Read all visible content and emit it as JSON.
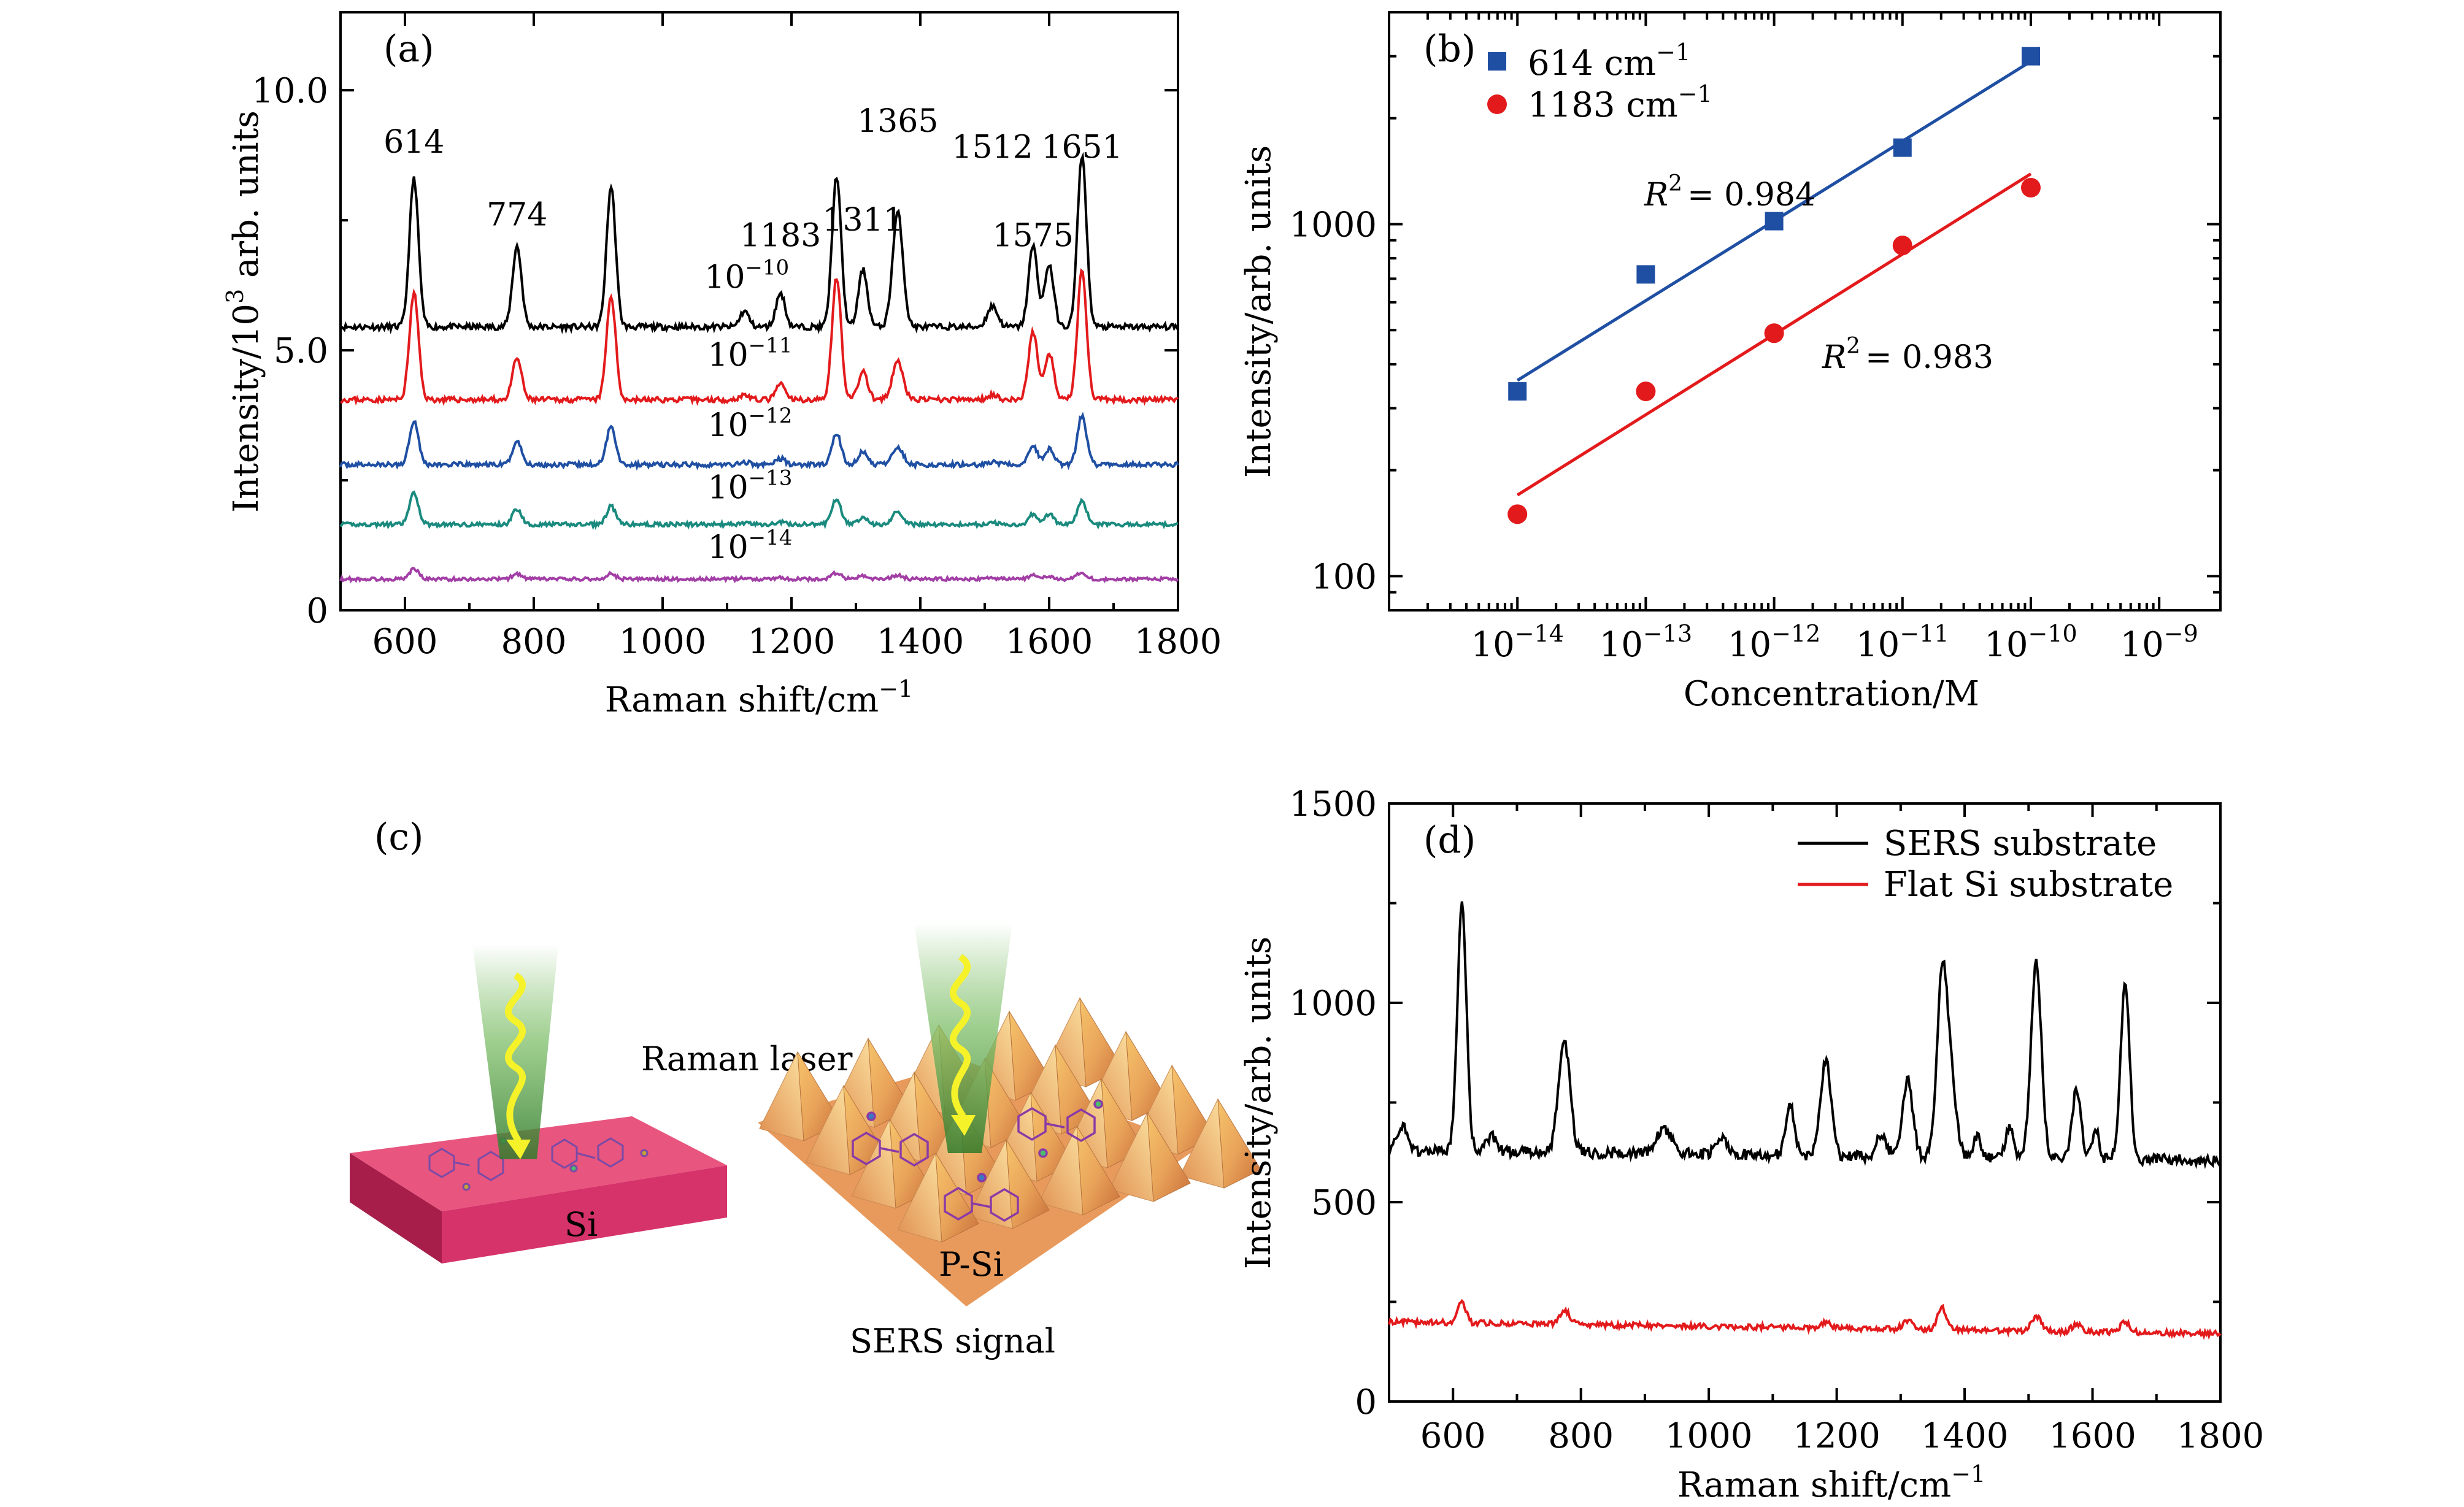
{
  "chart_data": [
    {
      "type": "line",
      "panel_label": "(a)",
      "xlabel": "Raman shift/cm",
      "xlabel_sup": "−1",
      "ylabel": "Intensity/10",
      "ylabel_sup": "3",
      "ylabel_tail": " arb. units",
      "xlim": [
        500,
        1800
      ],
      "ylim": [
        0,
        11.5
      ],
      "x_ticks": [
        600,
        800,
        1000,
        1200,
        1400,
        1600,
        1800
      ],
      "y_ticks": [
        {
          "v": 0,
          "label": "0"
        },
        {
          "v": 5,
          "label": "5.0"
        },
        {
          "v": 10,
          "label": "10.0"
        }
      ],
      "peaks": [
        614,
        774,
        1183,
        1311,
        1365,
        1512,
        1575,
        1651
      ],
      "peak_labels": [
        {
          "text": "614",
          "x": 614,
          "y": 8.8
        },
        {
          "text": "774",
          "x": 774,
          "y": 7.4
        },
        {
          "text": "1183",
          "x": 1183,
          "y": 7.0
        },
        {
          "text": "1311",
          "x": 1311,
          "y": 7.3
        },
        {
          "text": "1365",
          "x": 1365,
          "y": 9.2
        },
        {
          "text": "1512",
          "x": 1512,
          "y": 8.7
        },
        {
          "text": "1575",
          "x": 1575,
          "y": 7.0
        },
        {
          "text": "1651",
          "x": 1651,
          "y": 8.7
        }
      ],
      "series": [
        {
          "label": "10",
          "label_sup": "−10",
          "label_x": 1065,
          "label_y": 6.2,
          "color": "#000000",
          "baseline": 5.45,
          "heights": [
            2.85,
            1.55,
            0.65,
            1.1,
            2.2,
            0.4,
            1.55,
            3.3,
            0.3,
            2.9,
            1.2,
            2.7
          ],
          "seed": 11
        },
        {
          "label": "10",
          "label_sup": "−11",
          "label_x": 1070,
          "label_y": 4.7,
          "color": "#e31a1c",
          "baseline": 4.05,
          "heights": [
            2.05,
            0.8,
            0.3,
            0.55,
            0.75,
            0.1,
            1.3,
            2.5,
            0.1,
            2.35,
            0.9,
            2.0
          ],
          "seed": 23
        },
        {
          "label": "10",
          "label_sup": "−12",
          "label_x": 1070,
          "label_y": 3.35,
          "color": "#1f4fa3",
          "baseline": 2.8,
          "heights": [
            0.85,
            0.45,
            0.12,
            0.25,
            0.35,
            0.05,
            0.35,
            0.95,
            0.05,
            0.6,
            0.3,
            0.75
          ],
          "seed": 37
        },
        {
          "label": "10",
          "label_sup": "−13",
          "label_x": 1070,
          "label_y": 2.15,
          "color": "#1a8a7e",
          "baseline": 1.65,
          "heights": [
            0.6,
            0.3,
            0.05,
            0.15,
            0.25,
            0.03,
            0.2,
            0.45,
            0.03,
            0.5,
            0.2,
            0.35
          ],
          "seed": 41
        },
        {
          "label": "10",
          "label_sup": "−14",
          "label_x": 1070,
          "label_y": 1.0,
          "color": "#a23ea6",
          "baseline": 0.6,
          "heights": [
            0.2,
            0.1,
            0.03,
            0.06,
            0.08,
            0.02,
            0.07,
            0.13,
            0.02,
            0.12,
            0.06,
            0.1
          ],
          "seed": 53
        }
      ]
    },
    {
      "type": "scatter",
      "panel_label": "(b)",
      "xscale": "log",
      "yscale": "log",
      "xlabel": "Concentration/M",
      "ylabel": "Intensity/arb. units",
      "xlim": [
        1e-15,
        3e-09
      ],
      "ylim": [
        80,
        4000
      ],
      "x_ticks": [
        {
          "v": 1e-14,
          "base": "10",
          "exp": "−14"
        },
        {
          "v": 1e-13,
          "base": "10",
          "exp": "−13"
        },
        {
          "v": 1e-12,
          "base": "10",
          "exp": "−12"
        },
        {
          "v": 1e-11,
          "base": "10",
          "exp": "−11"
        },
        {
          "v": 1e-10,
          "base": "10",
          "exp": "−10"
        },
        {
          "v": 1e-09,
          "base": "10",
          "exp": "−9"
        }
      ],
      "y_ticks": [
        {
          "v": 100,
          "label": "100"
        },
        {
          "v": 1000,
          "label": "1000"
        }
      ],
      "legend_position": "top-left",
      "series": [
        {
          "name": "614 cm",
          "name_sup": "−1",
          "color": "#1f4fa3",
          "marker": "square",
          "x": [
            1e-14,
            1e-13,
            1e-12,
            1e-11,
            1e-10
          ],
          "y": [
            335,
            720,
            1020,
            1650,
            3000
          ],
          "fit": [
            [
              1e-14,
              360
            ],
            [
              1e-10,
              2900
            ]
          ],
          "r2": "= 0.984"
        },
        {
          "name": "1183 cm",
          "name_sup": "−1",
          "color": "#e31a1c",
          "marker": "circle",
          "x": [
            1e-14,
            1e-13,
            1e-12,
            1e-11,
            1e-10
          ],
          "y": [
            150,
            335,
            490,
            870,
            1270
          ],
          "fit": [
            [
              1e-14,
              170
            ],
            [
              1e-10,
              1390
            ]
          ],
          "r2": "= 0.983"
        }
      ]
    },
    {
      "type": "line",
      "panel_label": "(d)",
      "xlabel": "Raman shift/cm",
      "xlabel_sup": "−1",
      "ylabel": "Intensity/arb. units",
      "xlim": [
        500,
        1800
      ],
      "ylim": [
        0,
        1500
      ],
      "x_ticks": [
        600,
        800,
        1000,
        1200,
        1400,
        1600,
        1800
      ],
      "y_ticks": [
        0,
        500,
        1000,
        1500
      ],
      "legend_position": "top-right",
      "series": [
        {
          "name": "SERS substrate",
          "color": "#000000",
          "baseline": 630,
          "seed": 71,
          "peaks": [
            [
              614,
              620,
              7
            ],
            [
              774,
              280,
              9
            ],
            [
              520,
              60,
              8
            ],
            [
              660,
              40,
              7
            ],
            [
              930,
              60,
              12
            ],
            [
              1020,
              40,
              9
            ],
            [
              1127,
              125,
              7
            ],
            [
              1183,
              245,
              8
            ],
            [
              1270,
              55,
              8
            ],
            [
              1311,
              190,
              8
            ],
            [
              1365,
              470,
              8
            ],
            [
              1380,
              160,
              8
            ],
            [
              1420,
              55,
              6
            ],
            [
              1470,
              80,
              6
            ],
            [
              1512,
              490,
              8
            ],
            [
              1575,
              170,
              7
            ],
            [
              1605,
              70,
              5
            ],
            [
              1651,
              440,
              7
            ]
          ]
        },
        {
          "name": "Flat Si substrate",
          "color": "#e31a1c",
          "baseline": 200,
          "seed": 83,
          "peaks": [
            [
              614,
              55,
              6
            ],
            [
              774,
              35,
              8
            ],
            [
              1183,
              15,
              8
            ],
            [
              1311,
              20,
              8
            ],
            [
              1365,
              55,
              7
            ],
            [
              1512,
              35,
              8
            ],
            [
              1575,
              18,
              7
            ],
            [
              1651,
              28,
              7
            ]
          ]
        }
      ]
    }
  ],
  "diagram": {
    "panel_label": "(c)",
    "laser_label": "Raman laser",
    "si_label": "Si",
    "psi_label": "P-Si",
    "signal_label": "SERS signal"
  }
}
